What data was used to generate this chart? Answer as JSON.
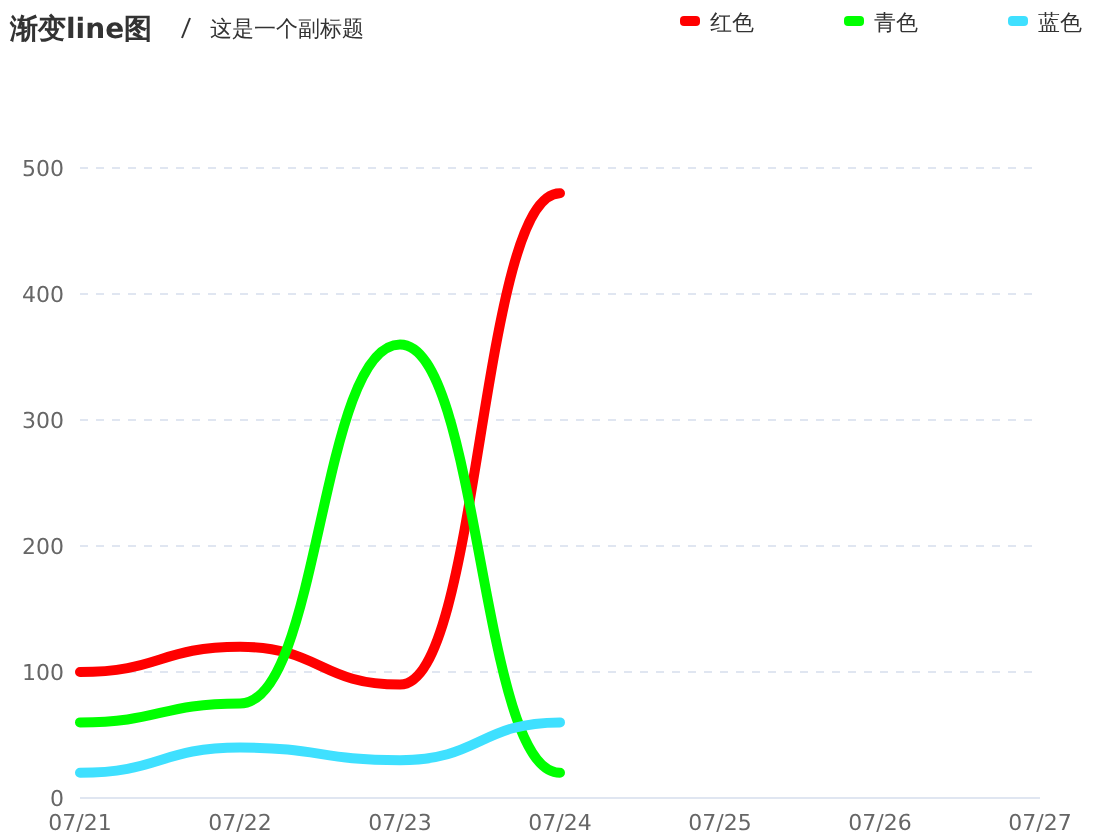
{
  "chart_data": {
    "type": "line",
    "title": "渐变line图",
    "subtitle": "这是一个副标题",
    "categories": [
      "07/21",
      "07/22",
      "07/23",
      "07/24",
      "07/25",
      "07/26",
      "07/27"
    ],
    "series": [
      {
        "name": "红色",
        "color": "#ff0000",
        "values": [
          100,
          120,
          90,
          480,
          null,
          null,
          null
        ]
      },
      {
        "name": "青色",
        "color": "#00ff00",
        "values": [
          60,
          75,
          360,
          20,
          null,
          null,
          null
        ]
      },
      {
        "name": "蓝色",
        "color": "#3fe0ff",
        "values": [
          20,
          40,
          30,
          60,
          null,
          null,
          null
        ]
      }
    ],
    "ylim": [
      0,
      500
    ],
    "yticks": [
      0,
      100,
      200,
      300,
      400,
      500
    ],
    "grid": "y",
    "legend": "top right",
    "marker": "none",
    "line_style": "solid"
  }
}
